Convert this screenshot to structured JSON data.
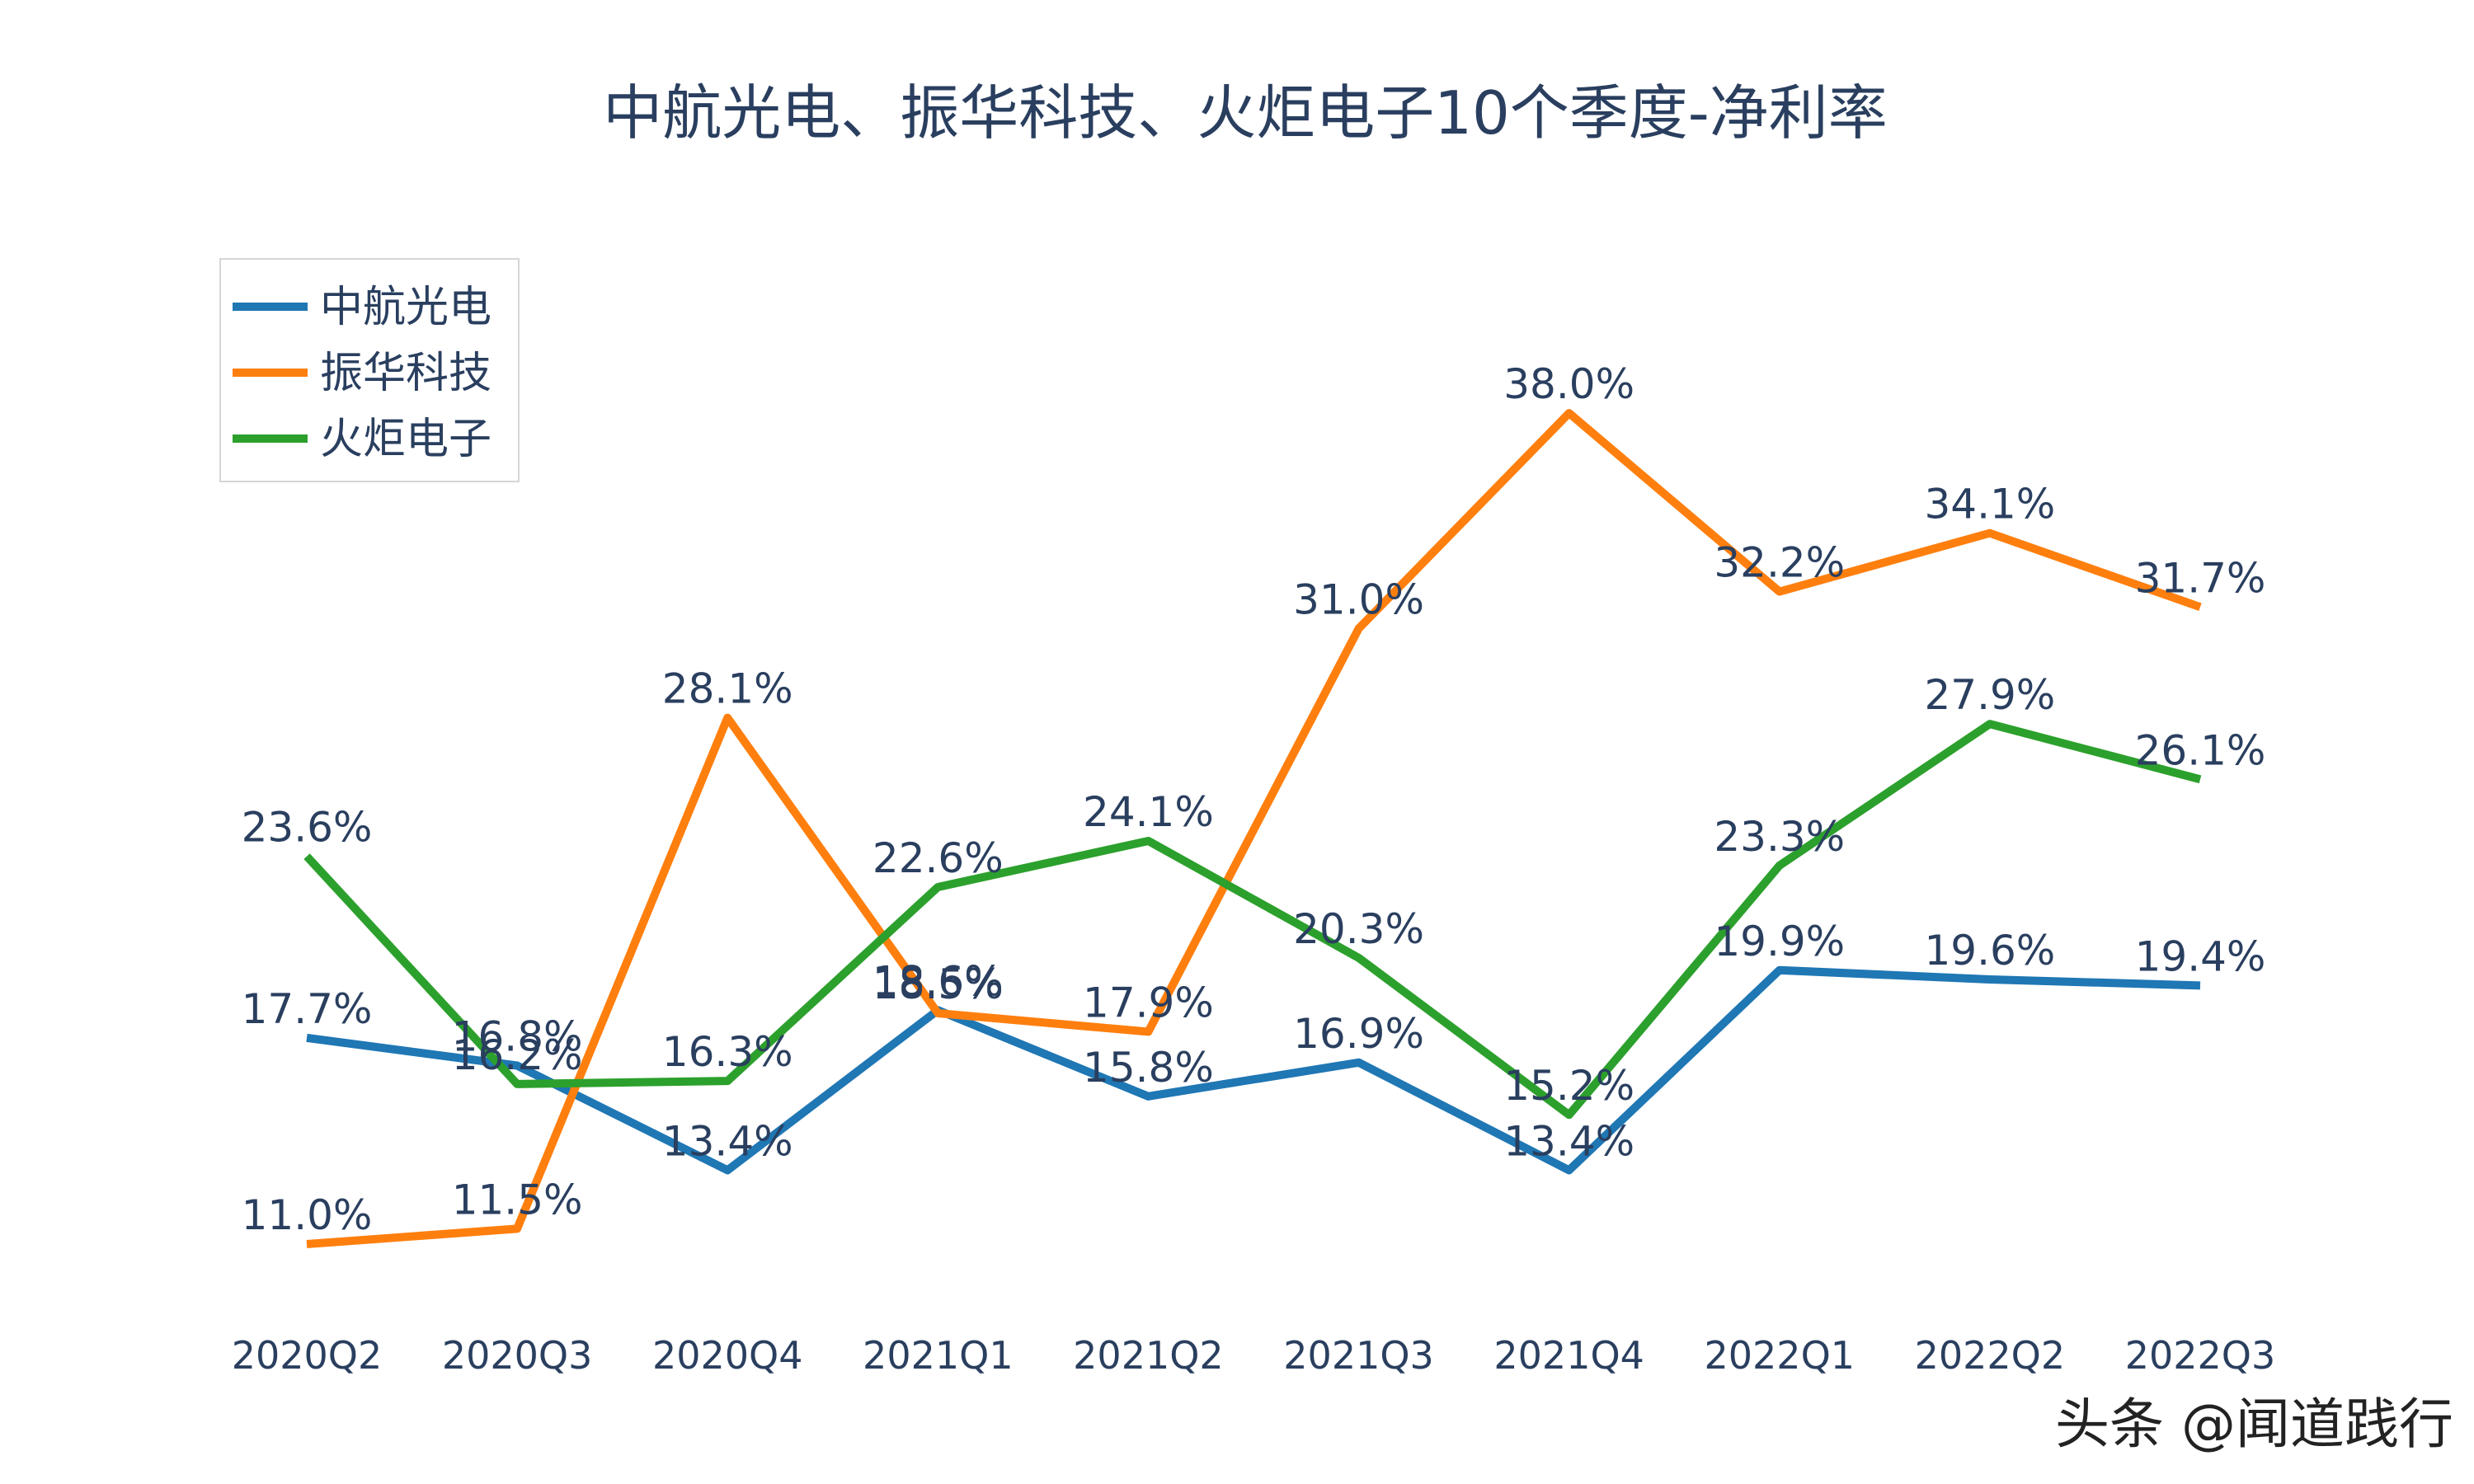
{
  "chart_data": {
    "type": "line",
    "title": "中航光电、振华科技、火炬电子10个季度-净利率",
    "xlabel": "",
    "ylabel": "",
    "categories": [
      "2020Q2",
      "2020Q3",
      "2020Q4",
      "2021Q1",
      "2021Q2",
      "2021Q3",
      "2021Q4",
      "2022Q1",
      "2022Q2",
      "2022Q3"
    ],
    "series": [
      {
        "name": "中航光电",
        "color": "#1f77b4",
        "values": [
          17.7,
          16.8,
          13.4,
          18.6,
          15.8,
          16.9,
          13.4,
          19.9,
          19.6,
          19.4
        ],
        "labels": [
          "17.7%",
          "16.8%",
          "13.4%",
          "18.6%",
          "15.8%",
          "16.9%",
          "13.4%",
          "19.9%",
          "19.6%",
          "19.4%"
        ]
      },
      {
        "name": "振华科技",
        "color": "#ff7f0e",
        "values": [
          11.0,
          11.5,
          28.1,
          18.5,
          17.9,
          31.0,
          38.0,
          32.2,
          34.1,
          31.7
        ],
        "labels": [
          "11.0%",
          "11.5%",
          "28.1%",
          "18.5%",
          "17.9%",
          "31.0%",
          "38.0%",
          "32.2%",
          "34.1%",
          "31.7%"
        ]
      },
      {
        "name": "火炬电子",
        "color": "#2ca02c",
        "values": [
          23.6,
          16.2,
          16.3,
          22.6,
          24.1,
          20.3,
          15.2,
          23.3,
          27.9,
          26.1
        ],
        "labels": [
          "23.6%",
          "16.2%",
          "16.3%",
          "22.6%",
          "24.1%",
          "20.3%",
          "15.2%",
          "23.3%",
          "27.9%",
          "26.1%"
        ]
      }
    ],
    "grid": false,
    "legend_position": "top-left",
    "y_axis_visible": false
  },
  "watermark": "头条 @闻道践行"
}
